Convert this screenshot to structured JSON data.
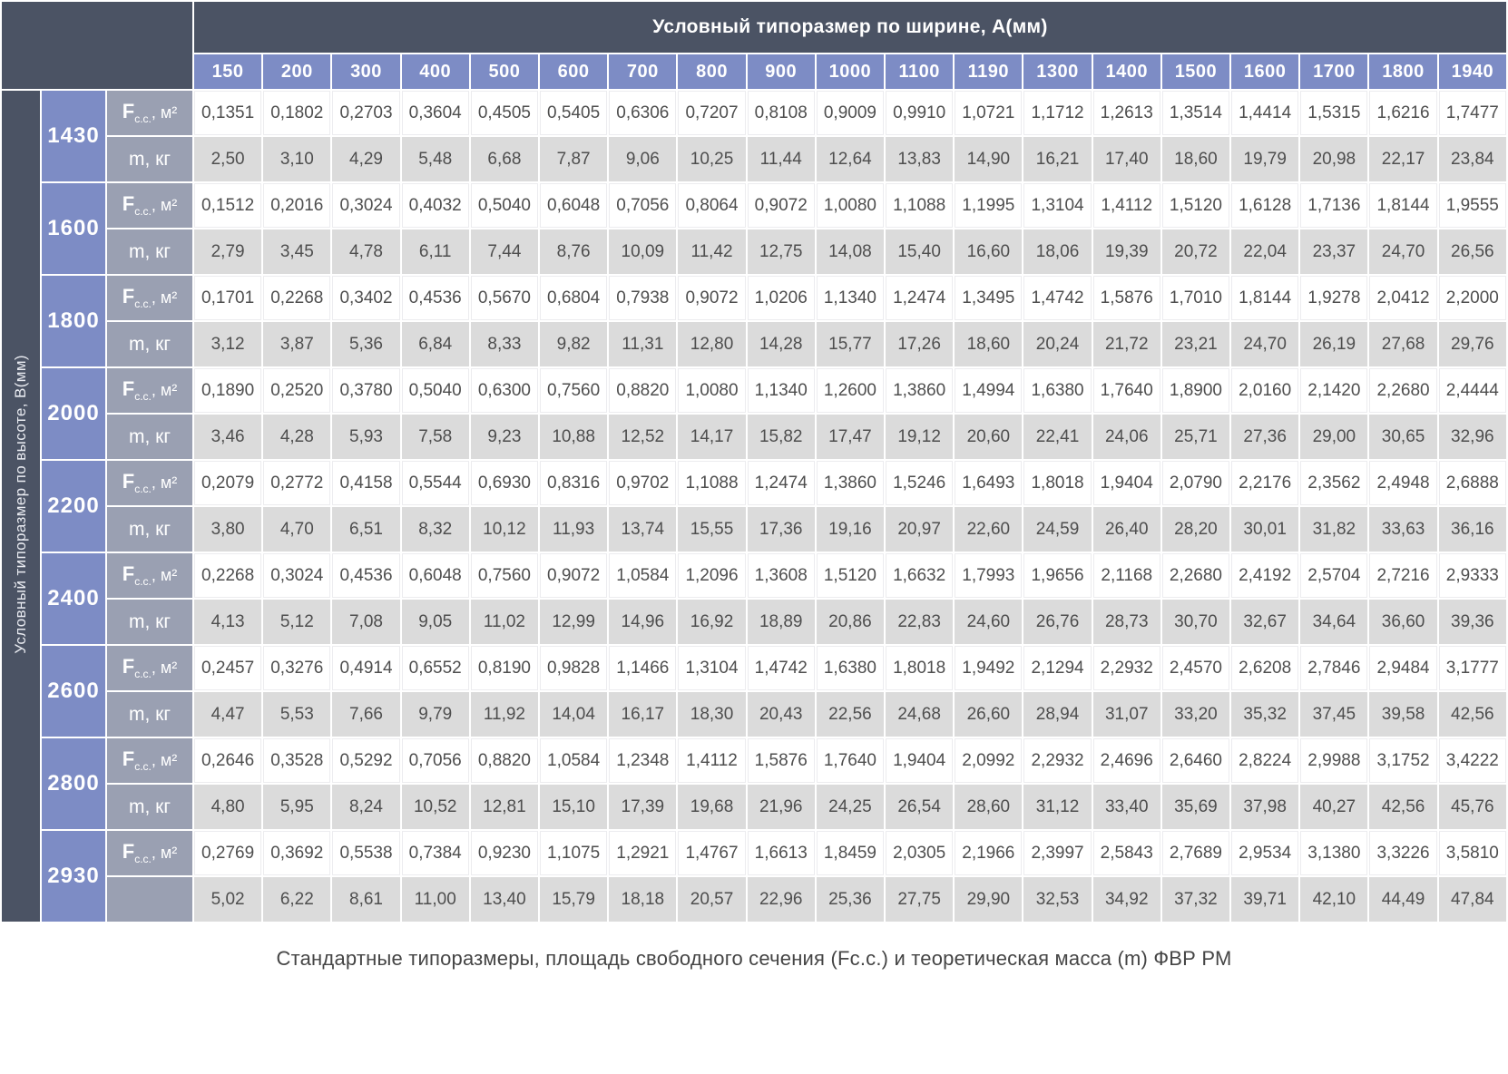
{
  "table": {
    "col_header_title": "Условный типоразмер по ширине, А(мм)",
    "row_header_title": "Условный типоразмер по высоте, В(мм)",
    "widths": [
      "150",
      "200",
      "300",
      "400",
      "500",
      "600",
      "700",
      "800",
      "900",
      "1000",
      "1100",
      "1190",
      "1300",
      "1400",
      "1500",
      "1600",
      "1700",
      "1800",
      "1940"
    ],
    "f_label": {
      "main": "F",
      "sub": "c.c.",
      "rest": ", м²"
    },
    "m_label": "m, кг",
    "groups": [
      {
        "height": "1430",
        "m_label": "m, кг",
        "f": [
          "0,1351",
          "0,1802",
          "0,2703",
          "0,3604",
          "0,4505",
          "0,5405",
          "0,6306",
          "0,7207",
          "0,8108",
          "0,9009",
          "0,9910",
          "1,0721",
          "1,1712",
          "1,2613",
          "1,3514",
          "1,4414",
          "1,5315",
          "1,6216",
          "1,7477"
        ],
        "m": [
          "2,50",
          "3,10",
          "4,29",
          "5,48",
          "6,68",
          "7,87",
          "9,06",
          "10,25",
          "11,44",
          "12,64",
          "13,83",
          "14,90",
          "16,21",
          "17,40",
          "18,60",
          "19,79",
          "20,98",
          "22,17",
          "23,84"
        ]
      },
      {
        "height": "1600",
        "m_label": "m, кг",
        "f": [
          "0,1512",
          "0,2016",
          "0,3024",
          "0,4032",
          "0,5040",
          "0,6048",
          "0,7056",
          "0,8064",
          "0,9072",
          "1,0080",
          "1,1088",
          "1,1995",
          "1,3104",
          "1,4112",
          "1,5120",
          "1,6128",
          "1,7136",
          "1,8144",
          "1,9555"
        ],
        "m": [
          "2,79",
          "3,45",
          "4,78",
          "6,11",
          "7,44",
          "8,76",
          "10,09",
          "11,42",
          "12,75",
          "14,08",
          "15,40",
          "16,60",
          "18,06",
          "19,39",
          "20,72",
          "22,04",
          "23,37",
          "24,70",
          "26,56"
        ]
      },
      {
        "height": "1800",
        "m_label": "m, кг",
        "f": [
          "0,1701",
          "0,2268",
          "0,3402",
          "0,4536",
          "0,5670",
          "0,6804",
          "0,7938",
          "0,9072",
          "1,0206",
          "1,1340",
          "1,2474",
          "1,3495",
          "1,4742",
          "1,5876",
          "1,7010",
          "1,8144",
          "1,9278",
          "2,0412",
          "2,2000"
        ],
        "m": [
          "3,12",
          "3,87",
          "5,36",
          "6,84",
          "8,33",
          "9,82",
          "11,31",
          "12,80",
          "14,28",
          "15,77",
          "17,26",
          "18,60",
          "20,24",
          "21,72",
          "23,21",
          "24,70",
          "26,19",
          "27,68",
          "29,76"
        ]
      },
      {
        "height": "2000",
        "m_label": "m, кг",
        "f": [
          "0,1890",
          "0,2520",
          "0,3780",
          "0,5040",
          "0,6300",
          "0,7560",
          "0,8820",
          "1,0080",
          "1,1340",
          "1,2600",
          "1,3860",
          "1,4994",
          "1,6380",
          "1,7640",
          "1,8900",
          "2,0160",
          "2,1420",
          "2,2680",
          "2,4444"
        ],
        "m": [
          "3,46",
          "4,28",
          "5,93",
          "7,58",
          "9,23",
          "10,88",
          "12,52",
          "14,17",
          "15,82",
          "17,47",
          "19,12",
          "20,60",
          "22,41",
          "24,06",
          "25,71",
          "27,36",
          "29,00",
          "30,65",
          "32,96"
        ]
      },
      {
        "height": "2200",
        "m_label": "m, кг",
        "f": [
          "0,2079",
          "0,2772",
          "0,4158",
          "0,5544",
          "0,6930",
          "0,8316",
          "0,9702",
          "1,1088",
          "1,2474",
          "1,3860",
          "1,5246",
          "1,6493",
          "1,8018",
          "1,9404",
          "2,0790",
          "2,2176",
          "2,3562",
          "2,4948",
          "2,6888"
        ],
        "m": [
          "3,80",
          "4,70",
          "6,51",
          "8,32",
          "10,12",
          "11,93",
          "13,74",
          "15,55",
          "17,36",
          "19,16",
          "20,97",
          "22,60",
          "24,59",
          "26,40",
          "28,20",
          "30,01",
          "31,82",
          "33,63",
          "36,16"
        ]
      },
      {
        "height": "2400",
        "m_label": "m, кг",
        "f": [
          "0,2268",
          "0,3024",
          "0,4536",
          "0,6048",
          "0,7560",
          "0,9072",
          "1,0584",
          "1,2096",
          "1,3608",
          "1,5120",
          "1,6632",
          "1,7993",
          "1,9656",
          "2,1168",
          "2,2680",
          "2,4192",
          "2,5704",
          "2,7216",
          "2,9333"
        ],
        "m": [
          "4,13",
          "5,12",
          "7,08",
          "9,05",
          "11,02",
          "12,99",
          "14,96",
          "16,92",
          "18,89",
          "20,86",
          "22,83",
          "24,60",
          "26,76",
          "28,73",
          "30,70",
          "32,67",
          "34,64",
          "36,60",
          "39,36"
        ]
      },
      {
        "height": "2600",
        "m_label": "m, кг",
        "f": [
          "0,2457",
          "0,3276",
          "0,4914",
          "0,6552",
          "0,8190",
          "0,9828",
          "1,1466",
          "1,3104",
          "1,4742",
          "1,6380",
          "1,8018",
          "1,9492",
          "2,1294",
          "2,2932",
          "2,4570",
          "2,6208",
          "2,7846",
          "2,9484",
          "3,1777"
        ],
        "m": [
          "4,47",
          "5,53",
          "7,66",
          "9,79",
          "11,92",
          "14,04",
          "16,17",
          "18,30",
          "20,43",
          "22,56",
          "24,68",
          "26,60",
          "28,94",
          "31,07",
          "33,20",
          "35,32",
          "37,45",
          "39,58",
          "42,56"
        ]
      },
      {
        "height": "2800",
        "m_label": "m, кг",
        "f": [
          "0,2646",
          "0,3528",
          "0,5292",
          "0,7056",
          "0,8820",
          "1,0584",
          "1,2348",
          "1,4112",
          "1,5876",
          "1,7640",
          "1,9404",
          "2,0992",
          "2,2932",
          "2,4696",
          "2,6460",
          "2,8224",
          "2,9988",
          "3,1752",
          "3,4222"
        ],
        "m": [
          "4,80",
          "5,95",
          "8,24",
          "10,52",
          "12,81",
          "15,10",
          "17,39",
          "19,68",
          "21,96",
          "24,25",
          "26,54",
          "28,60",
          "31,12",
          "33,40",
          "35,69",
          "37,98",
          "40,27",
          "42,56",
          "45,76"
        ]
      },
      {
        "height": "2930",
        "m_label": "",
        "f": [
          "0,2769",
          "0,3692",
          "0,5538",
          "0,7384",
          "0,9230",
          "1,1075",
          "1,2921",
          "1,4767",
          "1,6613",
          "1,8459",
          "2,0305",
          "2,1966",
          "2,3997",
          "2,5843",
          "2,7689",
          "2,9534",
          "3,1380",
          "3,3226",
          "3,5810"
        ],
        "m": [
          "5,02",
          "6,22",
          "8,61",
          "11,00",
          "13,40",
          "15,79",
          "18,18",
          "20,57",
          "22,96",
          "25,36",
          "27,75",
          "29,90",
          "32,53",
          "34,92",
          "37,32",
          "39,71",
          "42,10",
          "44,49",
          "47,84"
        ]
      }
    ]
  },
  "caption": "Стандартные типоразмеры, площадь свободного сечения (Fc.c.) и теоретическая масса (m) ФВР РМ",
  "colors": {
    "header_dark": "#4b5364",
    "header_blue": "#7d8cc5",
    "row_label_gray": "#9aa0b2",
    "m_row_gray": "#dbdbdb",
    "f_row_white": "#ffffff",
    "data_text": "#4e4e4e"
  }
}
